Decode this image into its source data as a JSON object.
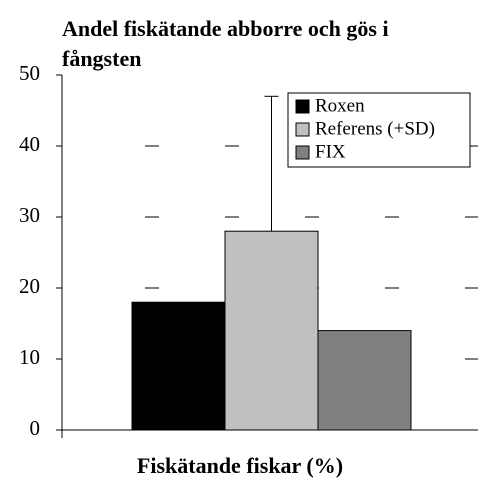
{
  "chart_data": {
    "type": "bar",
    "title": "Andel fiskätande abborre och gös i fångsten",
    "x_label": "Fiskätande fiskar (%)",
    "categories": [
      null
    ],
    "series": [
      {
        "name": "Roxen",
        "color": "#000000",
        "values": [
          18
        ]
      },
      {
        "name": "Referens (+SD)",
        "color": "#c0c0c0",
        "values": [
          28
        ],
        "errors": [
          19
        ]
      },
      {
        "name": "FIX",
        "color": "#808080",
        "values": [
          14
        ]
      }
    ],
    "ylim": [
      0,
      50
    ],
    "yticks": [
      0,
      10,
      20,
      30,
      40,
      50
    ],
    "grid": true,
    "legend": "upper right"
  }
}
